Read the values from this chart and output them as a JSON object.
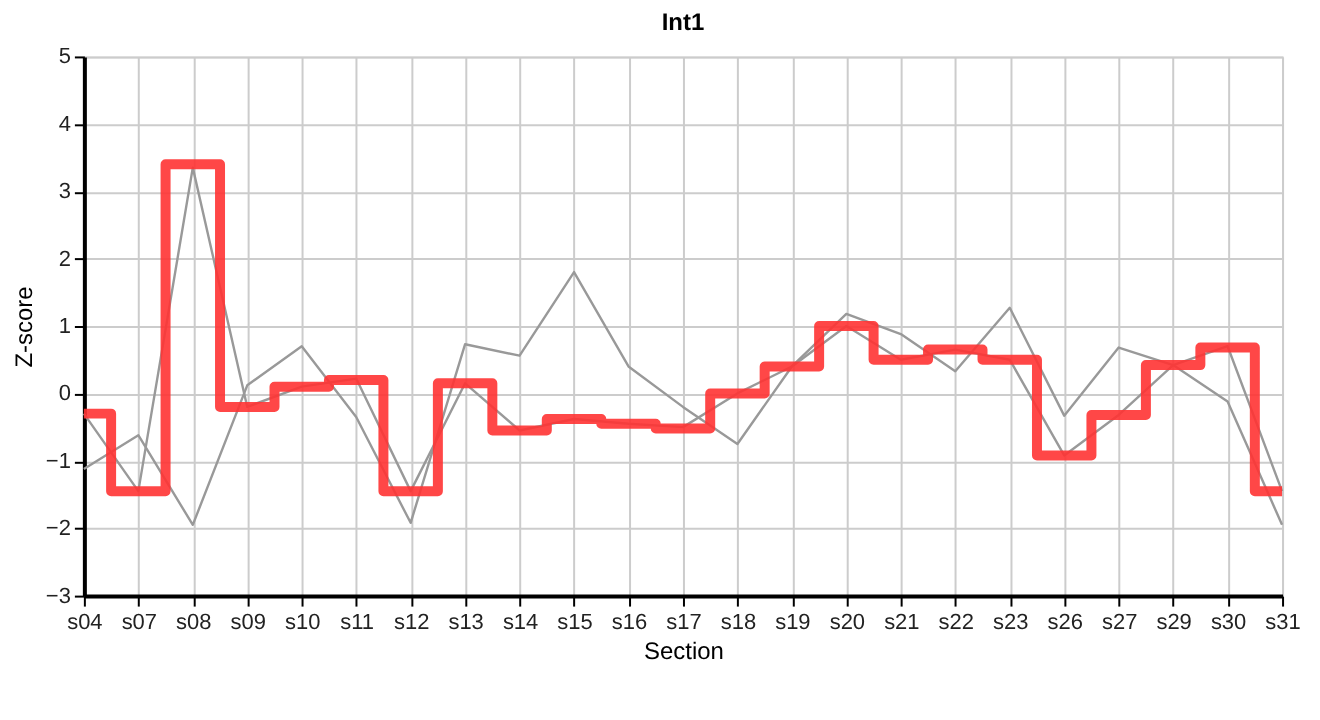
{
  "chart_data": {
    "type": "line",
    "title": "Int1",
    "xlabel": "Section",
    "ylabel": "Z-score",
    "categories": [
      "s04",
      "s07",
      "s08",
      "s09",
      "s10",
      "s11",
      "s12",
      "s13",
      "s14",
      "s15",
      "s16",
      "s17",
      "s18",
      "s19",
      "s20",
      "s21",
      "s22",
      "s23",
      "s26",
      "s27",
      "s29",
      "s30",
      "s31"
    ],
    "series": [
      {
        "color": "#999999",
        "values": [
          -1.12,
          -0.62,
          -1.95,
          0.12,
          0.7,
          -0.35,
          -1.92,
          0.73,
          0.56,
          1.8,
          0.4,
          -0.2,
          -0.75,
          0.4,
          1.18,
          0.88,
          0.33,
          1.27,
          -0.33,
          0.68,
          0.42,
          -0.12,
          -1.95
        ]
      },
      {
        "color": "#999999",
        "values": [
          -0.3,
          -1.45,
          3.35,
          -0.2,
          0.1,
          0.22,
          -1.45,
          0.15,
          -0.55,
          -0.38,
          -0.45,
          -0.5,
          0.0,
          0.4,
          1.0,
          0.5,
          0.65,
          0.5,
          -0.92,
          -0.32,
          0.42,
          0.7,
          -1.45
        ]
      },
      {
        "type": "step",
        "color": "#ff3333",
        "values": [
          -0.3,
          -1.45,
          3.4,
          -0.2,
          0.1,
          0.2,
          -1.45,
          0.15,
          -0.55,
          -0.38,
          -0.45,
          -0.52,
          0.0,
          0.4,
          1.0,
          0.5,
          0.65,
          0.5,
          -0.92,
          -0.32,
          0.42,
          0.68,
          -1.45
        ]
      }
    ],
    "ylim": [
      -3,
      5
    ],
    "yticks": [
      -3,
      -2,
      -1,
      0,
      1,
      2,
      3,
      4,
      5
    ],
    "grid": true,
    "marker": "none",
    "line_style": "solid"
  }
}
